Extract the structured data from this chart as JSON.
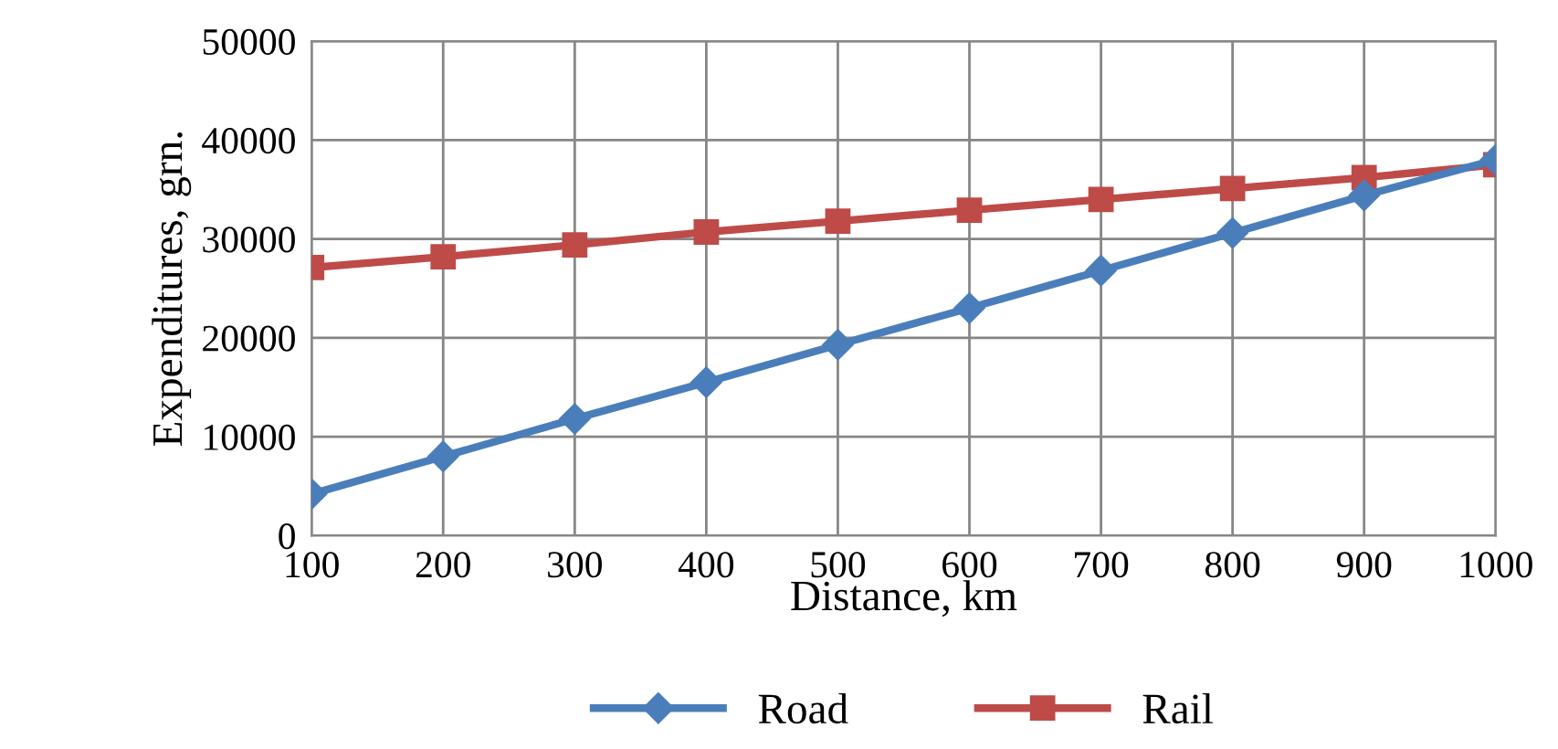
{
  "chart_data": {
    "type": "line",
    "xlabel": "Distance, km",
    "ylabel": "Expenditures, grn.",
    "x": [
      100,
      200,
      300,
      400,
      500,
      600,
      700,
      800,
      900,
      1000
    ],
    "series": [
      {
        "name": "Road",
        "color": "#4a7ebb",
        "marker": "diamond",
        "values": [
          4200,
          8000,
          11800,
          15500,
          19300,
          23000,
          26800,
          30600,
          34400,
          38000
        ]
      },
      {
        "name": "Rail",
        "color": "#be4b48",
        "marker": "square",
        "values": [
          27100,
          28200,
          29400,
          30700,
          31800,
          32900,
          34000,
          35100,
          36200,
          37500
        ]
      }
    ],
    "xlim": [
      100,
      1000
    ],
    "xticks": [
      100,
      200,
      300,
      400,
      500,
      600,
      700,
      800,
      900,
      1000
    ],
    "ylim": [
      0,
      50000
    ],
    "yticks": [
      0,
      10000,
      20000,
      30000,
      40000,
      50000
    ],
    "grid": true,
    "legend": "bottom",
    "line_style": "solid"
  }
}
